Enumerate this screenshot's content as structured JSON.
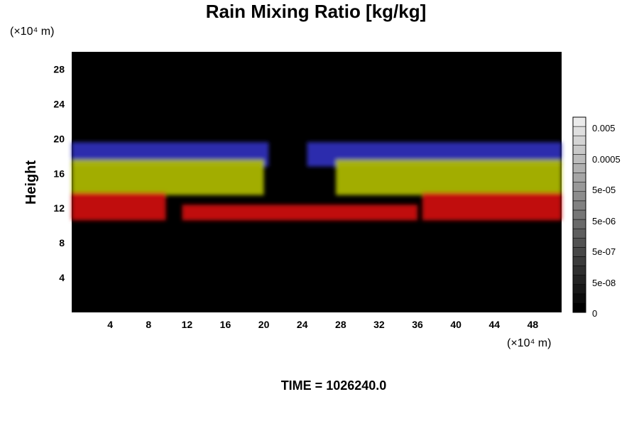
{
  "chart_data": {
    "type": "heatmap",
    "title": "Rain Mixing Ratio [kg/kg]",
    "ylabel": "Height",
    "xlabel": "",
    "x_unit": "(×10⁴ m)",
    "y_unit": "(×10⁴ m)",
    "xlim": [
      0,
      51
    ],
    "ylim": [
      0,
      30
    ],
    "x_ticks": [
      4,
      8,
      12,
      16,
      20,
      24,
      28,
      32,
      36,
      40,
      44,
      48
    ],
    "y_ticks": [
      4,
      8,
      12,
      16,
      20,
      24,
      28
    ],
    "footer": "TIME = 1026240.0",
    "colorbar": {
      "ticks": [
        "0.005",
        "0.0005",
        "5e-05",
        "5e-06",
        "5e-07",
        "5e-08",
        "0"
      ],
      "levels": 21
    },
    "layers": [
      {
        "color": "#3030c0",
        "bottom": 16.8,
        "top": 19.6,
        "segments": [
          [
            0,
            20.5
          ],
          [
            24.5,
            51
          ]
        ]
      },
      {
        "color": "#b4c000",
        "bottom": 13.5,
        "top": 17.6,
        "segments": [
          [
            0,
            20.0
          ],
          [
            27.5,
            51
          ]
        ]
      },
      {
        "color": "#d51010",
        "bottom": 10.6,
        "top": 13.8,
        "segments": [
          [
            0,
            9.8
          ],
          [
            36.5,
            51
          ]
        ]
      },
      {
        "color": "#d51010",
        "bottom": 10.6,
        "top": 12.4,
        "segments": [
          [
            11.5,
            36.0
          ]
        ]
      }
    ]
  }
}
